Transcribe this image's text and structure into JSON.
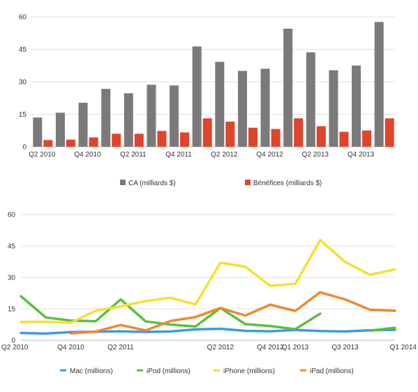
{
  "chart_data": [
    {
      "type": "bar",
      "categories": [
        "Q2 2010",
        "Q3 2010",
        "Q4 2010",
        "Q1 2011",
        "Q2 2011",
        "Q3 2011",
        "Q4 2011",
        "Q1 2012",
        "Q2 2012",
        "Q3 2012",
        "Q4 2012",
        "Q1 2013",
        "Q2 2013",
        "Q3 2013",
        "Q4 2013",
        "Q1 2014"
      ],
      "tick_labels": [
        "Q2 2010",
        "Q4 2010",
        "Q2 2011",
        "Q4 2011",
        "Q2 2012",
        "Q4 2012",
        "Q2 2013",
        "Q4 2013"
      ],
      "series": [
        {
          "name": "CA (milliards $)",
          "color": "#7a7a7a",
          "values": [
            13.5,
            15.7,
            20.3,
            26.7,
            24.7,
            28.6,
            28.3,
            46.3,
            39.2,
            35.0,
            36.0,
            54.5,
            43.6,
            35.3,
            37.5,
            57.6
          ]
        },
        {
          "name": "Bénéfices (milliards $)",
          "color": "#e0452b",
          "values": [
            3.1,
            3.3,
            4.3,
            6.0,
            6.0,
            7.3,
            6.6,
            13.1,
            11.6,
            8.8,
            8.2,
            13.1,
            9.5,
            6.9,
            7.5,
            13.1
          ]
        }
      ],
      "yticks": [
        0,
        15,
        30,
        45,
        60
      ],
      "ylim": [
        0,
        60
      ],
      "grid": true,
      "legend_position": "bottom"
    },
    {
      "type": "line",
      "categories": [
        "Q2 2010",
        "Q3 2010",
        "Q4 2010",
        "Q1 2011",
        "Q2 2011",
        "Q3 2011",
        "Q4 2011",
        "Q1 2012",
        "Q2 2012",
        "Q3 2012",
        "Q4 2012",
        "Q1 2013",
        "Q2 2013",
        "Q3 2013",
        "Q4 2013",
        "Q1 2014"
      ],
      "tick_labels": [
        "Q2 2010",
        "Q4 2010",
        "Q2 2011",
        "Q2 2012",
        "Q4 2012",
        "Q1 2013",
        "Q3 2013",
        "Q1 2014"
      ],
      "series": [
        {
          "name": "Mac (millions)",
          "color": "#3d9be0",
          "values": [
            3.5,
            3.2,
            3.9,
            4.1,
            4.3,
            4.0,
            4.2,
            5.2,
            5.5,
            4.5,
            4.3,
            4.9,
            4.4,
            4.2,
            4.8,
            5.0
          ]
        },
        {
          "name": "iPod (millions)",
          "color": "#59c13d",
          "values": [
            21.0,
            10.9,
            9.4,
            9.1,
            19.5,
            9.0,
            7.5,
            6.6,
            15.4,
            7.7,
            6.8,
            5.3,
            12.7,
            null,
            4.6,
            6.0
          ]
        },
        {
          "name": "iPhone (millions)",
          "color": "#f5e030",
          "values": [
            8.8,
            8.8,
            8.4,
            14.1,
            16.2,
            18.7,
            20.3,
            17.1,
            37.0,
            35.1,
            26.0,
            26.9,
            47.8,
            37.4,
            31.2,
            33.8
          ]
        },
        {
          "name": "iPad (millions)",
          "color": "#ef8a2c",
          "values": [
            null,
            null,
            3.3,
            4.2,
            7.3,
            4.7,
            9.2,
            11.1,
            15.4,
            11.8,
            17.0,
            14.0,
            22.9,
            19.5,
            14.6,
            14.1
          ]
        }
      ],
      "yticks": [
        0,
        15,
        30,
        45,
        60
      ],
      "ylim": [
        0,
        60
      ],
      "grid": true,
      "legend_position": "bottom"
    }
  ]
}
